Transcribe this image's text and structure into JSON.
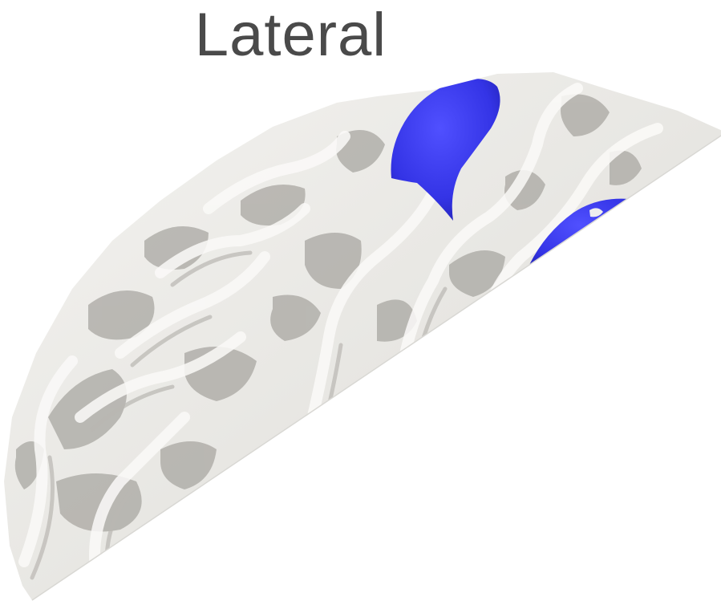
{
  "figure": {
    "view_label": "Lateral",
    "colors": {
      "background": "#ffffff",
      "cortex_light": "#f0efec",
      "cortex_shade": "#c9c7c2",
      "sulcus_dark": "#9a9894",
      "highlight": "#3c3cf0"
    }
  }
}
